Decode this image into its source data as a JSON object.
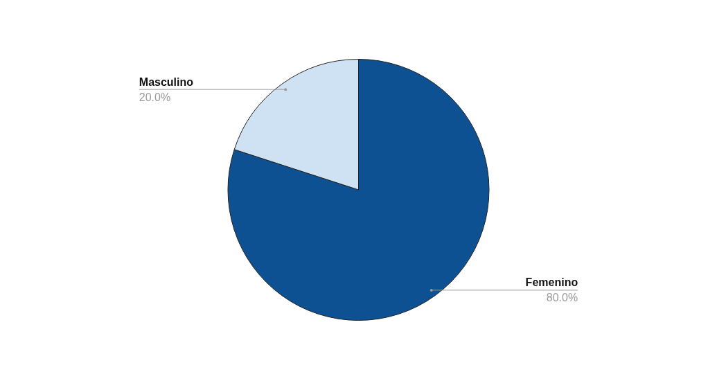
{
  "chart_data": {
    "type": "pie",
    "categories": [
      "Femenino",
      "Masculino"
    ],
    "values": [
      80,
      20
    ],
    "colors": [
      "#0d5192",
      "#cfe2f3"
    ],
    "value_labels": [
      "80.0%",
      "20.0%"
    ],
    "legend": false
  }
}
